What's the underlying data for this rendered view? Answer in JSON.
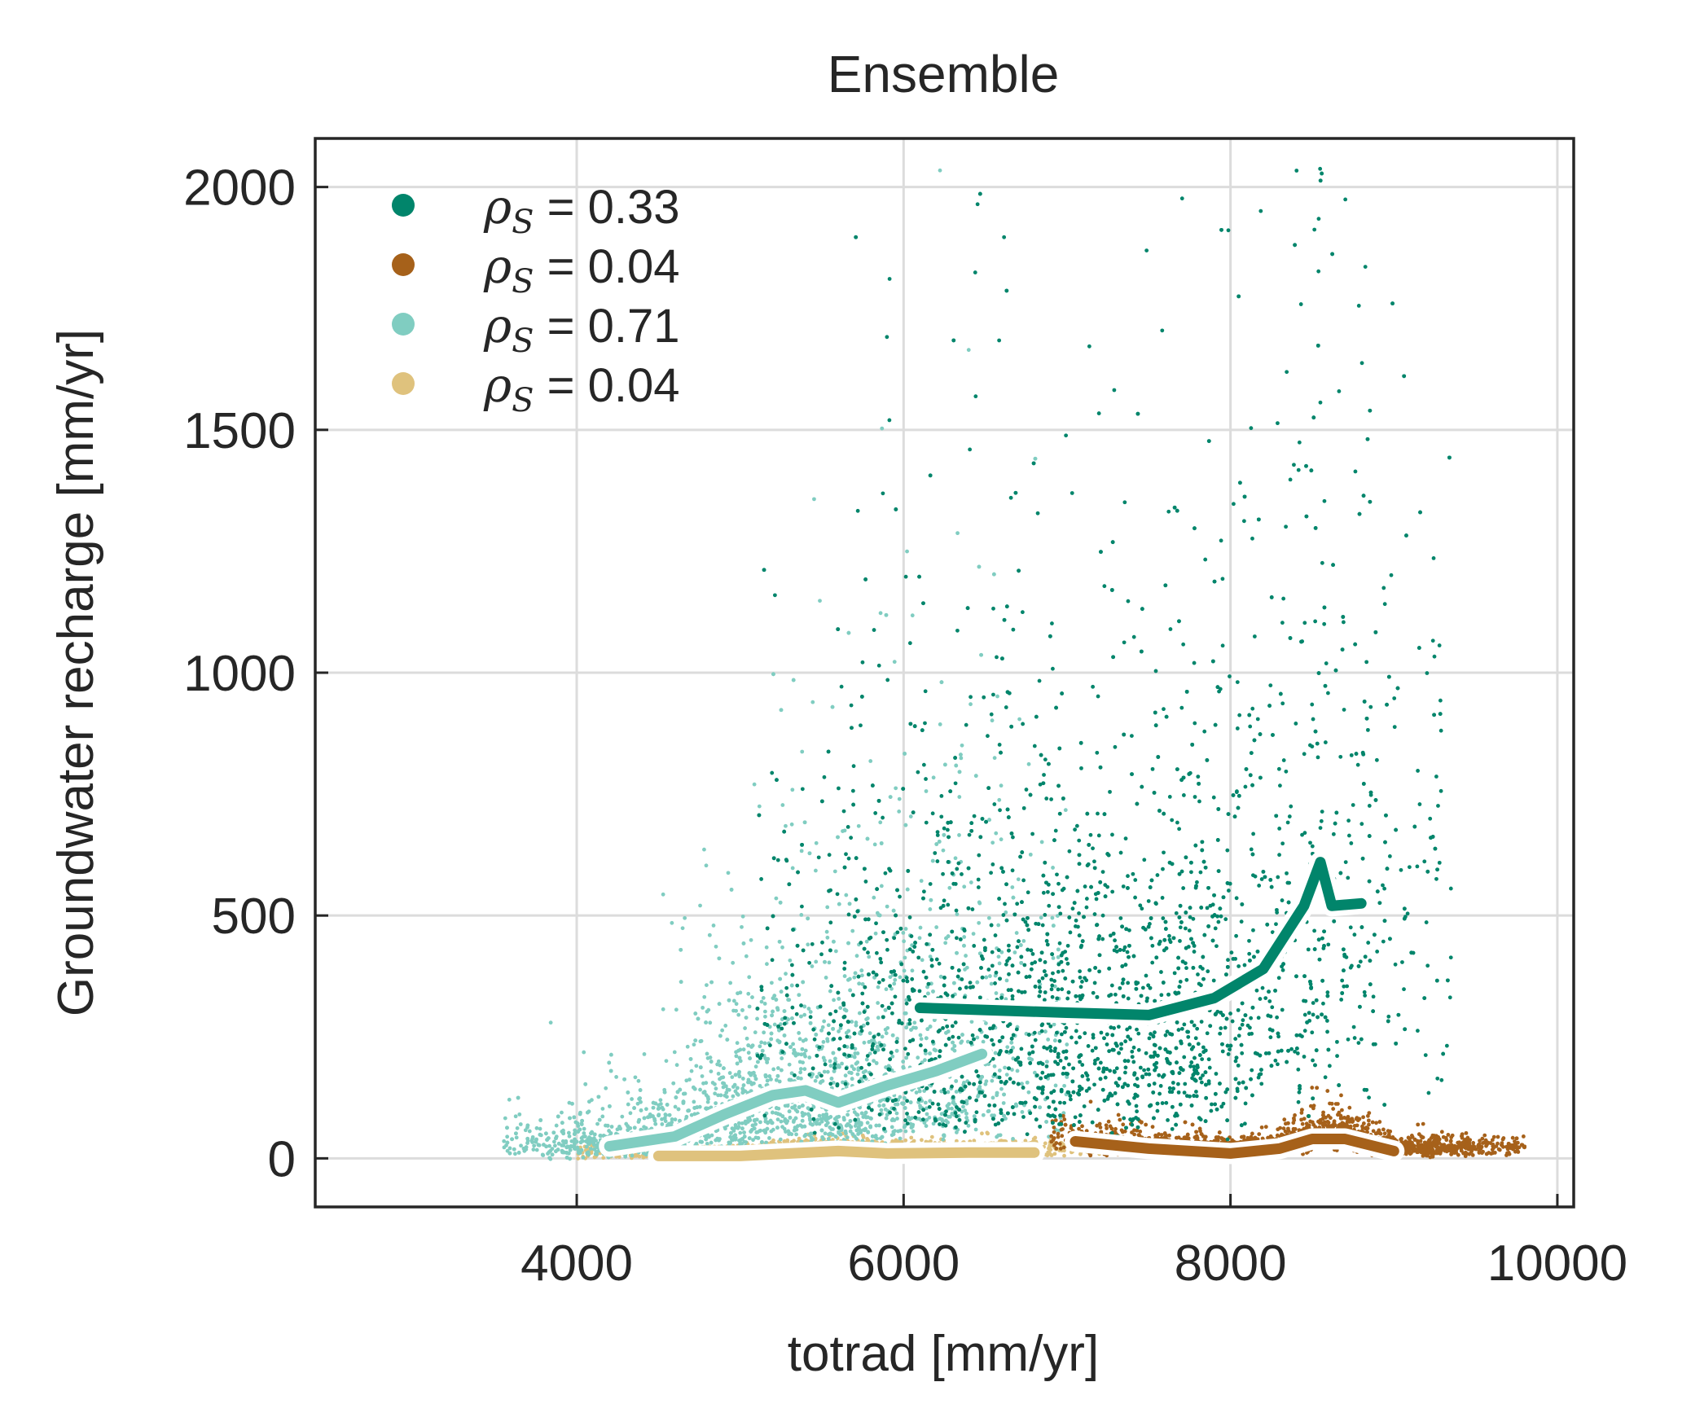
{
  "chart_data": {
    "type": "scatter",
    "title": "Ensemble",
    "xlabel": "totrad [mm/yr]",
    "ylabel": "Groundwater recharge [mm/yr]",
    "xlim": [
      2400,
      10100
    ],
    "ylim": [
      -100,
      2100
    ],
    "xticks": [
      4000,
      6000,
      8000,
      10000
    ],
    "yticks": [
      0,
      500,
      1000,
      1500,
      2000
    ],
    "grid": true,
    "legend_position": "top-left",
    "series": [
      {
        "legend_prefix": "ρ",
        "legend_sub": "S",
        "legend_value": " = 0.33",
        "color": "#01856b",
        "trend": [
          [
            6100,
            310
          ],
          [
            7000,
            300
          ],
          [
            7500,
            295
          ],
          [
            7900,
            330
          ],
          [
            8200,
            390
          ],
          [
            8450,
            520
          ],
          [
            8550,
            610
          ],
          [
            8620,
            520
          ],
          [
            8800,
            525
          ]
        ]
      },
      {
        "legend_prefix": "ρ",
        "legend_sub": "S",
        "legend_value": " = 0.04",
        "color": "#a6611a",
        "trend": [
          [
            7050,
            35
          ],
          [
            7500,
            20
          ],
          [
            8000,
            10
          ],
          [
            8300,
            20
          ],
          [
            8500,
            40
          ],
          [
            8700,
            40
          ],
          [
            9000,
            15
          ]
        ]
      },
      {
        "legend_prefix": "ρ",
        "legend_sub": "S",
        "legend_value": " = 0.71",
        "color": "#80cdc1",
        "trend": [
          [
            4200,
            25
          ],
          [
            4600,
            45
          ],
          [
            4900,
            90
          ],
          [
            5200,
            130
          ],
          [
            5400,
            140
          ],
          [
            5600,
            115
          ],
          [
            5900,
            150
          ],
          [
            6200,
            180
          ],
          [
            6480,
            215
          ]
        ]
      },
      {
        "legend_prefix": "ρ",
        "legend_sub": "S",
        "legend_value": " = 0.04",
        "color": "#dfc27d",
        "trend": [
          [
            4500,
            5
          ],
          [
            5000,
            5
          ],
          [
            5300,
            10
          ],
          [
            5600,
            15
          ],
          [
            5900,
            10
          ],
          [
            6400,
            12
          ],
          [
            6800,
            12
          ]
        ]
      }
    ]
  }
}
